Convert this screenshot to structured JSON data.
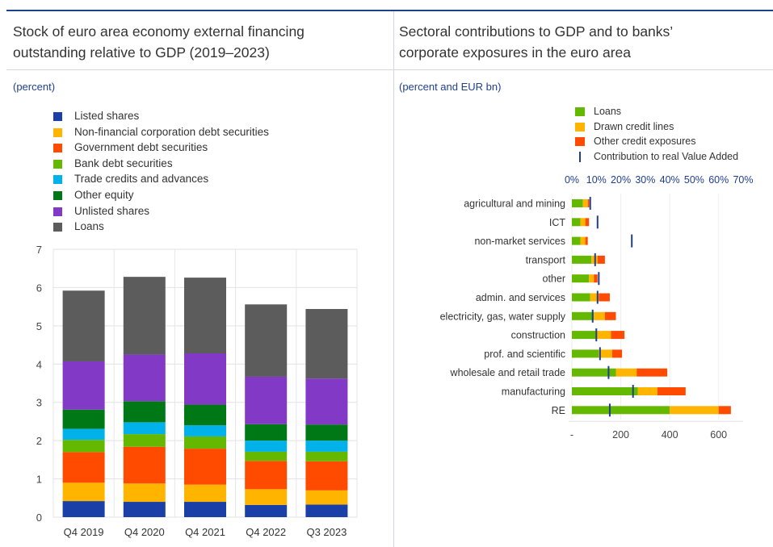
{
  "left_panel": {
    "title_line1": "Stock of euro area economy external financing",
    "title_line2": "outstanding relative to GDP (2019–2023)",
    "units": "(percent)"
  },
  "right_panel": {
    "title_line1": "Sectoral contributions to GDP and to banks’",
    "title_line2": "corporate exposures in the euro area",
    "units": "(percent and EUR bn)"
  },
  "chart_data": [
    {
      "type": "bar",
      "stacked": true,
      "title": "Stock of euro area economy external financing outstanding relative to GDP (2019–2023)",
      "ylabel": "(percent)",
      "categories": [
        "Q4 2019",
        "Q4 2020",
        "Q4 2021",
        "Q4 2022",
        "Q3 2023"
      ],
      "ylim": [
        0,
        7
      ],
      "yticks": [
        0,
        1,
        2,
        3,
        4,
        5,
        6,
        7
      ],
      "grid": true,
      "legend_position": "top-left",
      "series": [
        {
          "name": "Listed shares",
          "color": "#1a3fa6",
          "values": [
            0.42,
            0.4,
            0.4,
            0.32,
            0.33
          ]
        },
        {
          "name": "Non-financial corporation debt securities",
          "color": "#ffb400",
          "values": [
            0.48,
            0.48,
            0.45,
            0.41,
            0.37
          ]
        },
        {
          "name": "Government debt securities",
          "color": "#ff4b00",
          "values": [
            0.8,
            0.96,
            0.94,
            0.74,
            0.76
          ]
        },
        {
          "name": "Bank debt securities",
          "color": "#65b800",
          "values": [
            0.32,
            0.33,
            0.32,
            0.24,
            0.25
          ]
        },
        {
          "name": "Trade credits and advances",
          "color": "#00b1ea",
          "values": [
            0.29,
            0.31,
            0.29,
            0.29,
            0.29
          ]
        },
        {
          "name": "Other equity",
          "color": "#007816",
          "values": [
            0.5,
            0.55,
            0.54,
            0.43,
            0.42
          ]
        },
        {
          "name": "Unlisted shares",
          "color": "#8139c6",
          "values": [
            1.26,
            1.22,
            1.34,
            1.24,
            1.2
          ]
        },
        {
          "name": "Loans",
          "color": "#5c5c5c",
          "values": [
            1.85,
            2.03,
            1.98,
            1.89,
            1.82
          ]
        }
      ]
    },
    {
      "type": "bar",
      "orientation": "horizontal",
      "stacked": true,
      "title": "Sectoral contributions to GDP and to banks’ corporate exposures in the euro area",
      "ylabel": "(percent and EUR bn)",
      "categories": [
        "agricultural and mining",
        "ICT",
        "non-market services",
        "transport",
        "other",
        "admin. and services",
        "electricity, gas, water supply",
        "construction",
        "prof. and scientific",
        "wholesale and retail trade",
        "manufacturing",
        "RE"
      ],
      "x_bottom_ticks": [
        "-",
        "200",
        "400",
        "600"
      ],
      "x_bottom_range": [
        0,
        700
      ],
      "x_top_ticks": [
        "0%",
        "10%",
        "20%",
        "30%",
        "40%",
        "50%",
        "60%",
        "70%"
      ],
      "x_top_range": [
        0,
        70
      ],
      "legend_position": "top",
      "series": [
        {
          "name": "Loans",
          "color": "#65b800",
          "values": [
            45,
            35,
            35,
            80,
            70,
            75,
            90,
            100,
            110,
            180,
            270,
            400
          ]
        },
        {
          "name": "Drawn credit lines",
          "color": "#ffb400",
          "values": [
            20,
            20,
            20,
            25,
            20,
            35,
            45,
            60,
            55,
            85,
            80,
            200
          ]
        },
        {
          "name": "Other credit exposures",
          "color": "#ff4b00",
          "values": [
            6,
            15,
            10,
            30,
            15,
            45,
            45,
            55,
            40,
            125,
            115,
            50
          ]
        }
      ],
      "markers": {
        "name": "Contribution to real Value Added",
        "color": "#1f3f8f",
        "values": [
          7.5,
          10.5,
          24.5,
          9.5,
          11.0,
          10.5,
          8.5,
          10.0,
          11.5,
          15.0,
          25.0,
          15.5
        ]
      }
    }
  ]
}
